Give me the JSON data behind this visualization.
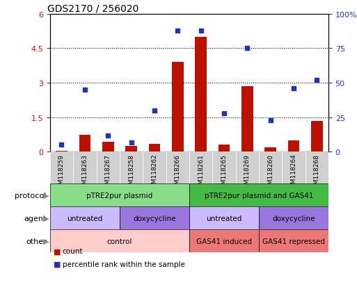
{
  "title": "GDS2170 / 256020",
  "samples": [
    "GSM118259",
    "GSM118263",
    "GSM118267",
    "GSM118258",
    "GSM118262",
    "GSM118266",
    "GSM118261",
    "GSM118265",
    "GSM118269",
    "GSM118260",
    "GSM118264",
    "GSM118268"
  ],
  "counts": [
    0.05,
    0.75,
    0.45,
    0.25,
    0.35,
    3.9,
    5.0,
    0.3,
    2.85,
    0.2,
    0.5,
    1.35
  ],
  "percentile": [
    5,
    45,
    12,
    7,
    30,
    88,
    88,
    28,
    75,
    23,
    46,
    52
  ],
  "ylim_left": [
    0,
    6
  ],
  "ylim_right": [
    0,
    100
  ],
  "yticks_left": [
    0,
    1.5,
    3.0,
    4.5,
    6.0
  ],
  "yticks_right": [
    0,
    25,
    50,
    75,
    100
  ],
  "ytick_labels_left": [
    "0",
    "1.5",
    "3",
    "4.5",
    "6"
  ],
  "ytick_labels_right": [
    "0",
    "25",
    "50",
    "75",
    "100%"
  ],
  "bar_color": "#bb1100",
  "dot_color": "#2233bb",
  "bg_color": "#ffffff",
  "xtick_bg": "#d0d0d0",
  "protocol_groups": [
    {
      "label": "pTRE2pur plasmid",
      "start": 0,
      "end": 6,
      "color": "#88dd88"
    },
    {
      "label": "pTRE2pur plasmid and GAS41",
      "start": 6,
      "end": 12,
      "color": "#44bb44"
    }
  ],
  "agent_groups": [
    {
      "label": "untreated",
      "start": 0,
      "end": 3,
      "color": "#ccbbff"
    },
    {
      "label": "doxycycline",
      "start": 3,
      "end": 6,
      "color": "#9977dd"
    },
    {
      "label": "untreated",
      "start": 6,
      "end": 9,
      "color": "#ccbbff"
    },
    {
      "label": "doxycycline",
      "start": 9,
      "end": 12,
      "color": "#9977dd"
    }
  ],
  "other_groups": [
    {
      "label": "control",
      "start": 0,
      "end": 6,
      "color": "#ffcccc"
    },
    {
      "label": "GAS41 induced",
      "start": 6,
      "end": 9,
      "color": "#ee7777"
    },
    {
      "label": "GAS41 repressed",
      "start": 9,
      "end": 12,
      "color": "#ee7777"
    }
  ],
  "row_labels": [
    "protocol",
    "agent",
    "other"
  ],
  "row_order": [
    "protocol",
    "agent",
    "other"
  ],
  "legend_items": [
    {
      "label": "count",
      "color": "#bb1100"
    },
    {
      "label": "percentile rank within the sample",
      "color": "#2233bb"
    }
  ]
}
